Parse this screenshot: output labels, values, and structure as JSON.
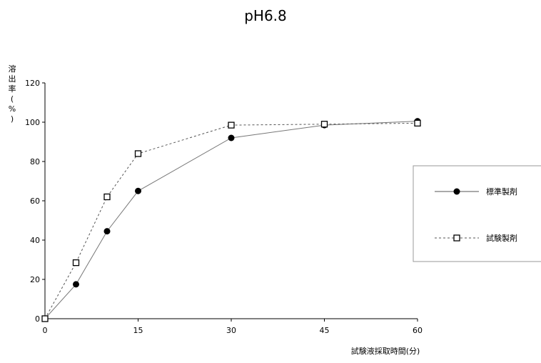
{
  "chart_data": {
    "type": "line",
    "title": "pH6.8",
    "xlabel": "試験液採取時間(分)",
    "ylabel": "溶出率(%)",
    "x": [
      0,
      5,
      10,
      15,
      30,
      45,
      60
    ],
    "x_ticks": [
      "0",
      "15",
      "30",
      "45",
      "60"
    ],
    "y_ticks": [
      "0",
      "20",
      "40",
      "60",
      "80",
      "100",
      "120"
    ],
    "xlim": [
      0,
      60
    ],
    "ylim": [
      0,
      120
    ],
    "grid": false,
    "legend_position": "right",
    "series": [
      {
        "name": "標準製剤",
        "values": [
          0,
          17.5,
          44.5,
          65,
          92,
          98.5,
          100.5
        ],
        "marker": "filled-circle",
        "line_style": "solid",
        "color": "#000000"
      },
      {
        "name": "試験製剤",
        "values": [
          0,
          28.5,
          62,
          84,
          98.5,
          99,
          99.5
        ],
        "marker": "open-square",
        "line_style": "dashed",
        "color": "#000000"
      }
    ]
  }
}
